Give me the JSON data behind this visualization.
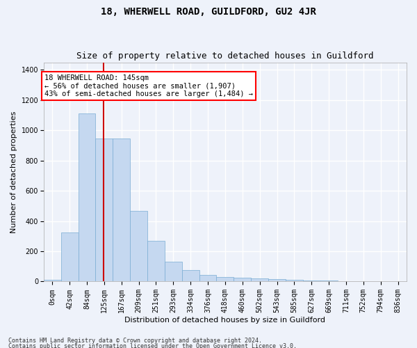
{
  "title": "18, WHERWELL ROAD, GUILDFORD, GU2 4JR",
  "subtitle": "Size of property relative to detached houses in Guildford",
  "xlabel": "Distribution of detached houses by size in Guildford",
  "ylabel": "Number of detached properties",
  "footer1": "Contains HM Land Registry data © Crown copyright and database right 2024.",
  "footer2": "Contains public sector information licensed under the Open Government Licence v3.0.",
  "bin_labels": [
    "0sqm",
    "42sqm",
    "84sqm",
    "125sqm",
    "167sqm",
    "209sqm",
    "251sqm",
    "293sqm",
    "334sqm",
    "376sqm",
    "418sqm",
    "460sqm",
    "502sqm",
    "543sqm",
    "585sqm",
    "627sqm",
    "669sqm",
    "711sqm",
    "752sqm",
    "794sqm",
    "836sqm"
  ],
  "bar_values": [
    10,
    325,
    1110,
    945,
    945,
    465,
    270,
    130,
    75,
    45,
    30,
    25,
    20,
    15,
    10,
    8,
    5,
    4,
    3,
    2,
    1
  ],
  "bar_color": "#c5d8f0",
  "bar_edge_color": "#7aadd4",
  "vline_color": "#cc0000",
  "annotation_text": "18 WHERWELL ROAD: 145sqm\n← 56% of detached houses are smaller (1,907)\n43% of semi-detached houses are larger (1,484) →",
  "ylim": [
    0,
    1450
  ],
  "yticks": [
    0,
    200,
    400,
    600,
    800,
    1000,
    1200,
    1400
  ],
  "plot_bg_color": "#eef2fa",
  "fig_bg_color": "#eef2fa",
  "grid_color": "#ffffff",
  "title_fontsize": 10,
  "subtitle_fontsize": 9,
  "axis_label_fontsize": 8,
  "tick_fontsize": 7,
  "annot_fontsize": 7.5
}
